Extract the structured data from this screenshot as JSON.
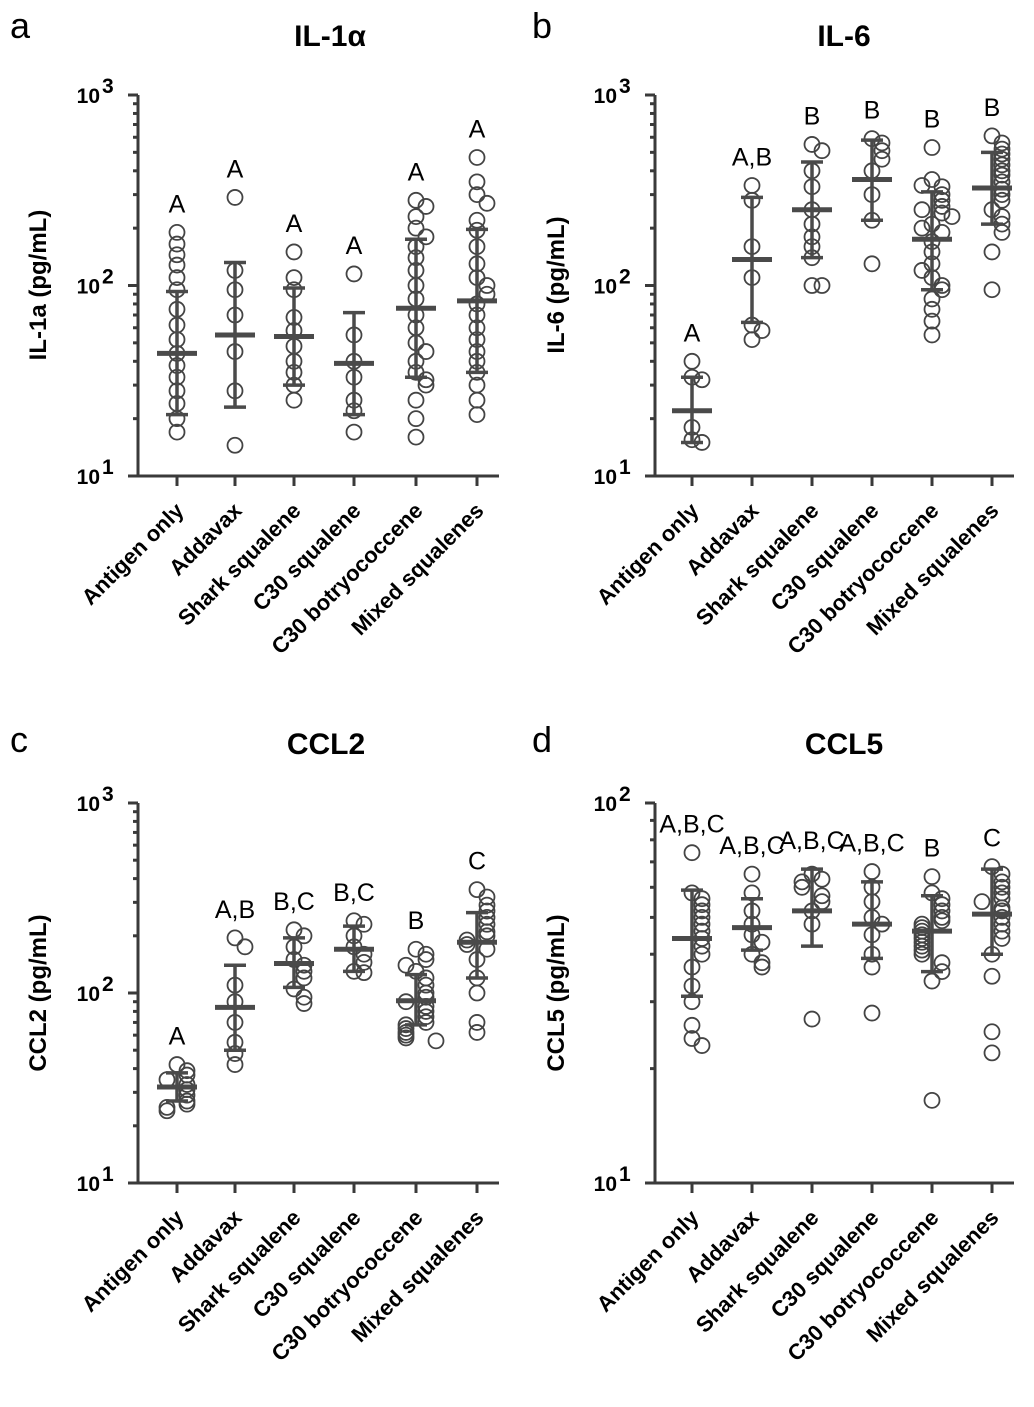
{
  "chart_data": [
    {
      "panel": "a",
      "type": "scatter",
      "title": "IL-1α",
      "ylabel": "IL-1a (pg/mL)",
      "yscale": "log",
      "ylim": [
        10,
        1000
      ],
      "yticks": [
        {
          "base": "10",
          "exp": "1"
        },
        {
          "base": "10",
          "exp": "2"
        },
        {
          "base": "10",
          "exp": "3"
        }
      ],
      "categories": [
        "Antigen only",
        "Addavax",
        "Shark squalene",
        "C30 squalene",
        "C30 botryococcene",
        "Mixed squalenes"
      ],
      "groups": [
        {
          "points": [
            190,
            165,
            145,
            128,
            110,
            95,
            75,
            62,
            52,
            44,
            38,
            33,
            28,
            24,
            20,
            17
          ],
          "mean": 44,
          "err_low": 21,
          "err_high": 93,
          "sig": "A"
        },
        {
          "points": [
            290,
            120,
            95,
            70,
            45,
            28,
            14.5
          ],
          "mean": 55,
          "err_low": 23,
          "err_high": 132,
          "sig": "A"
        },
        {
          "points": [
            150,
            110,
            95,
            68,
            58,
            48,
            40,
            35,
            30,
            25
          ],
          "mean": 54,
          "err_low": 30,
          "err_high": 97,
          "sig": "A"
        },
        {
          "points": [
            115,
            55,
            40,
            33,
            25,
            22,
            17
          ],
          "mean": 39,
          "err_low": 21,
          "err_high": 72,
          "sig": "A"
        },
        {
          "points": [
            280,
            260,
            230,
            200,
            180,
            160,
            140,
            120,
            100,
            85,
            70,
            60,
            50,
            45,
            40,
            35,
            32,
            30,
            25,
            20,
            16
          ],
          "mean": 76,
          "err_low": 33,
          "err_high": 175,
          "sig": "A"
        },
        {
          "points": [
            470,
            350,
            300,
            270,
            220,
            195,
            160,
            130,
            110,
            100,
            90,
            80,
            70,
            60,
            52,
            45,
            40,
            35,
            30,
            25,
            21
          ],
          "mean": 83,
          "err_low": 35,
          "err_high": 197,
          "sig": "A"
        }
      ]
    },
    {
      "panel": "b",
      "type": "scatter",
      "title": "IL-6",
      "ylabel": "IL-6 (pg/mL)",
      "yscale": "log",
      "ylim": [
        10,
        1000
      ],
      "yticks": [
        {
          "base": "10",
          "exp": "1"
        },
        {
          "base": "10",
          "exp": "2"
        },
        {
          "base": "10",
          "exp": "3"
        }
      ],
      "categories": [
        "Antigen only",
        "Addavax",
        "Shark squalene",
        "C30 squalene",
        "C30 botryococcene",
        "Mixed squalenes"
      ],
      "groups": [
        {
          "points": [
            40,
            33,
            32,
            18,
            15.5,
            15
          ],
          "mean": 22,
          "err_low": 15,
          "err_high": 33,
          "sig": "A"
        },
        {
          "points": [
            335,
            280,
            160,
            110,
            62,
            58,
            52
          ],
          "mean": 137,
          "err_low": 64,
          "err_high": 290,
          "sig": "A,B"
        },
        {
          "points": [
            550,
            510,
            400,
            330,
            250,
            210,
            180,
            160,
            140,
            100,
            100
          ],
          "mean": 250,
          "err_low": 140,
          "err_high": 445,
          "sig": "B"
        },
        {
          "points": [
            590,
            560,
            510,
            460,
            400,
            300,
            220,
            130
          ],
          "mean": 360,
          "err_low": 220,
          "err_high": 580,
          "sig": "B"
        },
        {
          "points": [
            530,
            360,
            330,
            300,
            280,
            260,
            240,
            210,
            190,
            170,
            150,
            130,
            110,
            100,
            95,
            85,
            75,
            65,
            55,
            335,
            250,
            230,
            200,
            120
          ],
          "mean": 175,
          "err_low": 95,
          "err_high": 310,
          "sig": "B"
        },
        {
          "points": [
            610,
            560,
            520,
            490,
            460,
            430,
            400,
            380,
            350,
            320,
            300,
            280,
            250,
            230,
            210,
            190,
            150,
            95
          ],
          "mean": 325,
          "err_low": 210,
          "err_high": 500,
          "sig": "B"
        }
      ]
    },
    {
      "panel": "c",
      "type": "scatter",
      "title": "CCL2",
      "ylabel": "CCL2 (pg/mL)",
      "yscale": "log",
      "ylim": [
        10,
        1000
      ],
      "yticks": [
        {
          "base": "10",
          "exp": "1"
        },
        {
          "base": "10",
          "exp": "2"
        },
        {
          "base": "10",
          "exp": "3"
        }
      ],
      "categories": [
        "Antigen only",
        "Addavax",
        "Shark squalene",
        "C30 squalene",
        "C30 botryococcene",
        "Mixed squalenes"
      ],
      "groups": [
        {
          "points": [
            42,
            39,
            37,
            35,
            33,
            31,
            29,
            27,
            26,
            25,
            24
          ],
          "mean": 32,
          "err_low": 27,
          "err_high": 38,
          "sig": "A"
        },
        {
          "points": [
            195,
            175,
            110,
            90,
            70,
            55,
            48,
            42
          ],
          "mean": 84,
          "err_low": 50,
          "err_high": 140,
          "sig": "A,B"
        },
        {
          "points": [
            215,
            200,
            175,
            150,
            140,
            130,
            120,
            105,
            95,
            88
          ],
          "mean": 143,
          "err_low": 107,
          "err_high": 195,
          "sig": "B,C"
        },
        {
          "points": [
            240,
            230,
            200,
            175,
            160,
            145,
            130,
            128
          ],
          "mean": 170,
          "err_low": 130,
          "err_high": 225,
          "sig": "B,C"
        },
        {
          "points": [
            170,
            160,
            150,
            130,
            120,
            110,
            100,
            95,
            90,
            85,
            80,
            75,
            70,
            68,
            65,
            62,
            60,
            58,
            56,
            140
          ],
          "mean": 91,
          "err_low": 68,
          "err_high": 125,
          "sig": "B"
        },
        {
          "points": [
            350,
            320,
            290,
            270,
            250,
            230,
            210,
            200,
            190,
            180,
            170,
            150,
            120,
            100,
            70,
            62
          ],
          "mean": 185,
          "err_low": 120,
          "err_high": 265,
          "sig": "C"
        }
      ]
    },
    {
      "panel": "d",
      "type": "scatter",
      "title": "CCL5",
      "ylabel": "CCL5 (pg/mL)",
      "yscale": "log",
      "ylim": [
        10,
        100
      ],
      "yticks": [
        {
          "base": "10",
          "exp": "1"
        },
        {
          "base": "10",
          "exp": "2"
        }
      ],
      "categories": [
        "Antigen only",
        "Addavax",
        "Shark squalene",
        "C30 squalene",
        "C30 botryococcene",
        "Mixed squalenes"
      ],
      "groups": [
        {
          "points": [
            74,
            58,
            56,
            54,
            52,
            50,
            48,
            46,
            44,
            42,
            40,
            37,
            33,
            30,
            26,
            24,
            23
          ],
          "mean": 44,
          "err_low": 31,
          "err_high": 59,
          "sig": "A,B,C"
        },
        {
          "points": [
            65,
            58,
            52,
            48,
            45,
            43,
            40,
            38,
            37
          ],
          "mean": 47,
          "err_low": 41,
          "err_high": 56,
          "sig": "A,B,C"
        },
        {
          "points": [
            65,
            63,
            62,
            60,
            57,
            55,
            52,
            48,
            27
          ],
          "mean": 52,
          "err_low": 42,
          "err_high": 67,
          "sig": "A,B,C"
        },
        {
          "points": [
            66,
            60,
            55,
            50,
            48,
            45,
            40,
            37,
            28
          ],
          "mean": 48,
          "err_low": 39,
          "err_high": 62,
          "sig": "A,B,C"
        },
        {
          "points": [
            64,
            58,
            56,
            54,
            52,
            50,
            49,
            48,
            47,
            46,
            45,
            44,
            43,
            42,
            41,
            40,
            38,
            36,
            34,
            16.5
          ],
          "mean": 46,
          "err_low": 36,
          "err_high": 57,
          "sig": "B"
        },
        {
          "points": [
            68,
            65,
            62,
            60,
            58,
            56,
            55,
            53,
            52,
            50,
            48,
            46,
            44,
            40,
            35,
            25,
            22
          ],
          "mean": 51,
          "err_low": 40,
          "err_high": 67,
          "sig": "C"
        }
      ]
    }
  ]
}
